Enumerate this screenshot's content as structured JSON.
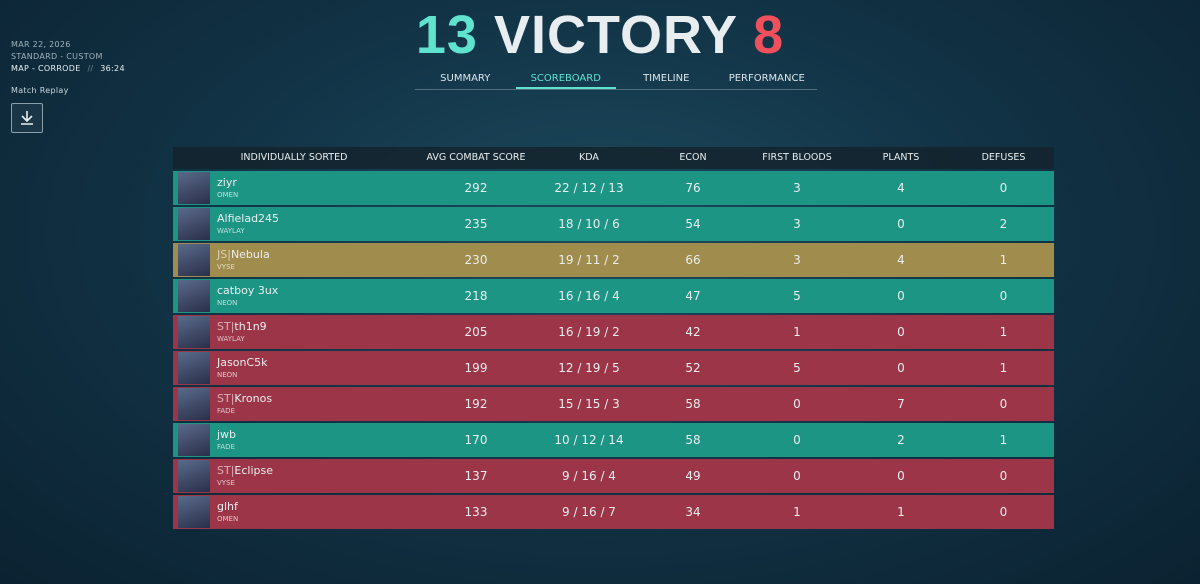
{
  "header": {
    "date": "MAR 22, 2026",
    "mode": "STANDARD - CUSTOM",
    "map": "MAP - CORRODE",
    "separator": "//",
    "duration": "36:24",
    "replay": "Match Replay"
  },
  "result": {
    "team_score": "13",
    "outcome": "VICTORY",
    "enemy_score": "8"
  },
  "tabs": [
    "SUMMARY",
    "SCOREBOARD",
    "TIMELINE",
    "PERFORMANCE"
  ],
  "active_tab": 1,
  "table": {
    "columns": [
      "INDIVIDUALLY SORTED",
      "AVG COMBAT SCORE",
      "KDA",
      "ECON",
      "FIRST BLOODS",
      "PLANTS",
      "DEFUSES"
    ],
    "rows": [
      {
        "tag": null,
        "name": "ziyr",
        "agent": "OMEN",
        "acs": 292,
        "kda": "22 / 12 / 13",
        "econ": 76,
        "first_bloods": 3,
        "plants": 4,
        "defuses": 0,
        "color": "#1c9585"
      },
      {
        "tag": null,
        "name": "Alfielad245",
        "agent": "WAYLAY",
        "acs": 235,
        "kda": "18 / 10 / 6",
        "econ": 54,
        "first_bloods": 3,
        "plants": 0,
        "defuses": 2,
        "color": "#1c9585"
      },
      {
        "tag": "JS|",
        "name": "Nebula",
        "agent": "VYSE",
        "acs": 230,
        "kda": "19 / 11 / 2",
        "econ": 66,
        "first_bloods": 3,
        "plants": 4,
        "defuses": 1,
        "color": "#a08c4c"
      },
      {
        "tag": null,
        "name": "catboy 3ux",
        "agent": "NEON",
        "acs": 218,
        "kda": "16 / 16 / 4",
        "econ": 47,
        "first_bloods": 5,
        "plants": 0,
        "defuses": 0,
        "color": "#1c9585"
      },
      {
        "tag": "ST|",
        "name": "th1n9",
        "agent": "WAYLAY",
        "acs": 205,
        "kda": "16 / 19 / 2",
        "econ": 42,
        "first_bloods": 1,
        "plants": 0,
        "defuses": 1,
        "color": "#9c3548"
      },
      {
        "tag": null,
        "name": "JasonC5k",
        "agent": "NEON",
        "acs": 199,
        "kda": "12 / 19 / 5",
        "econ": 52,
        "first_bloods": 5,
        "plants": 0,
        "defuses": 1,
        "color": "#9c3548"
      },
      {
        "tag": "ST|",
        "name": "Kronos",
        "agent": "FADE",
        "acs": 192,
        "kda": "15 / 15 / 3",
        "econ": 58,
        "first_bloods": 0,
        "plants": 7,
        "defuses": 0,
        "color": "#9c3548"
      },
      {
        "tag": null,
        "name": "jwb",
        "agent": "FADE",
        "acs": 170,
        "kda": "10 / 12 / 14",
        "econ": 58,
        "first_bloods": 0,
        "plants": 2,
        "defuses": 1,
        "color": "#1c9585"
      },
      {
        "tag": "ST|",
        "name": "Eclipse",
        "agent": "VYSE",
        "acs": 137,
        "kda": "9 / 16 / 4",
        "econ": 49,
        "first_bloods": 0,
        "plants": 0,
        "defuses": 0,
        "color": "#9c3548"
      },
      {
        "tag": null,
        "name": "glhf",
        "agent": "OMEN",
        "acs": 133,
        "kda": "9 / 16 / 7",
        "econ": 34,
        "first_bloods": 1,
        "plants": 1,
        "defuses": 0,
        "color": "#9c3548"
      }
    ]
  }
}
